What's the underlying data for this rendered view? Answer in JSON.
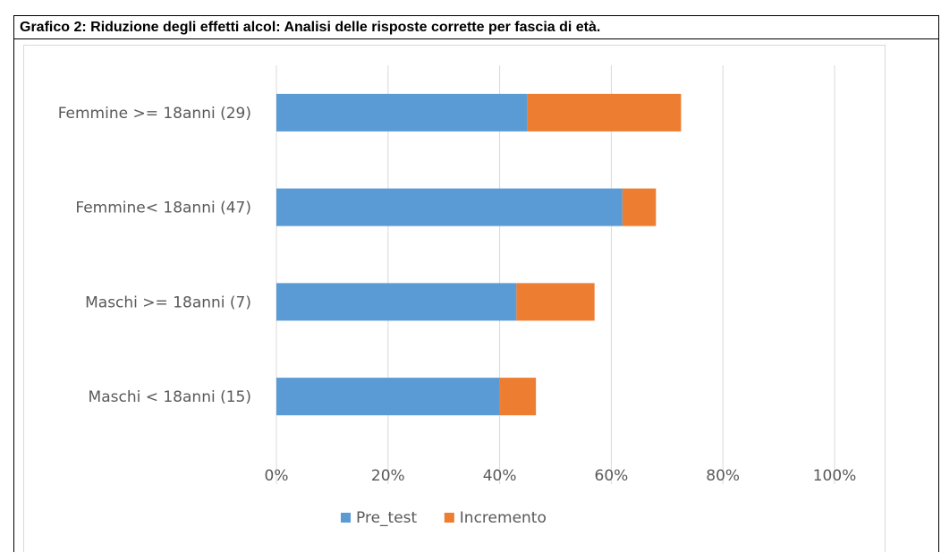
{
  "title": "Grafico 2: Riduzione degli effetti alcol: Analisi delle risposte corrette per fascia di età.",
  "chart_data": {
    "type": "bar",
    "orientation": "horizontal",
    "stacked": true,
    "categories": [
      "Femmine >= 18anni (29)",
      "Femmine< 18anni (47)",
      "Maschi >= 18anni (7)",
      "Maschi < 18anni (15)"
    ],
    "series": [
      {
        "name": "Pre_test",
        "color": "#5b9bd5",
        "values": [
          45,
          62,
          43,
          40
        ]
      },
      {
        "name": "Incremento",
        "color": "#ed7d31",
        "values": [
          27.5,
          6,
          14,
          6.5
        ]
      }
    ],
    "xlim": [
      0,
      100
    ],
    "x_ticks": [
      "0%",
      "20%",
      "40%",
      "60%",
      "80%",
      "100%"
    ],
    "grid": "vertical",
    "legend": "bottom"
  }
}
